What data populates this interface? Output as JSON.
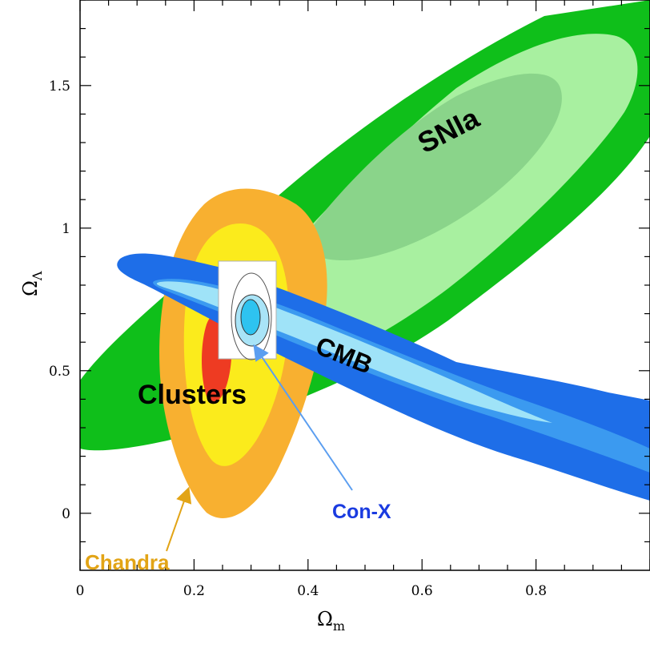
{
  "chart_data": {
    "type": "contour",
    "xlabel": "Ωm",
    "ylabel": "ΩΛ",
    "xlim": [
      0,
      1.0
    ],
    "ylim": [
      -0.2,
      1.8
    ],
    "x_ticks": [
      0,
      0.2,
      0.4,
      0.6,
      0.8
    ],
    "x_tick_labels": [
      "0",
      "0.2",
      "0.4",
      "0.6",
      "0.8"
    ],
    "y_ticks": [
      0,
      0.5,
      1,
      1.5
    ],
    "y_tick_labels": [
      "0",
      "0.5",
      "1",
      "1.5"
    ],
    "regions": [
      {
        "name": "SNIa",
        "color_outer": "#0fbf1a",
        "color_mid": "#a8f0a0",
        "color_inner": "#8ad48a",
        "center": [
          0.75,
          1.2
        ],
        "note": "elongated confidence ellipses"
      },
      {
        "name": "Clusters",
        "color_outer": "#f8b030",
        "color_mid": "#fbeb1c",
        "color_inner": "#ee3b22",
        "center": [
          0.27,
          0.6
        ]
      },
      {
        "name": "CMB",
        "color_outer": "#1e6ee8",
        "color_mid": "#3b9af0",
        "color_inner": "#9fe3f8",
        "center": [
          0.55,
          0.55
        ],
        "note": "narrow band"
      },
      {
        "name": "Con-X",
        "color_outer": "#a9e4f7",
        "color_inner": "#2ec3f0",
        "center": [
          0.28,
          0.72
        ],
        "note": "inset forecast constraint"
      }
    ]
  },
  "annotations": {
    "snia": "SNIa",
    "cmb": "CMB",
    "clusters": "Clusters",
    "conx": "Con-X",
    "chandra": "Chandra"
  },
  "colors": {
    "snia_label": "#000000",
    "cmb_label": "#000000",
    "clusters_label": "#000000",
    "conx_label": "#1a3be0",
    "chandra_label": "#e2a416",
    "conx_arrow": "#5b9ef0",
    "chandra_arrow": "#e2a416"
  }
}
